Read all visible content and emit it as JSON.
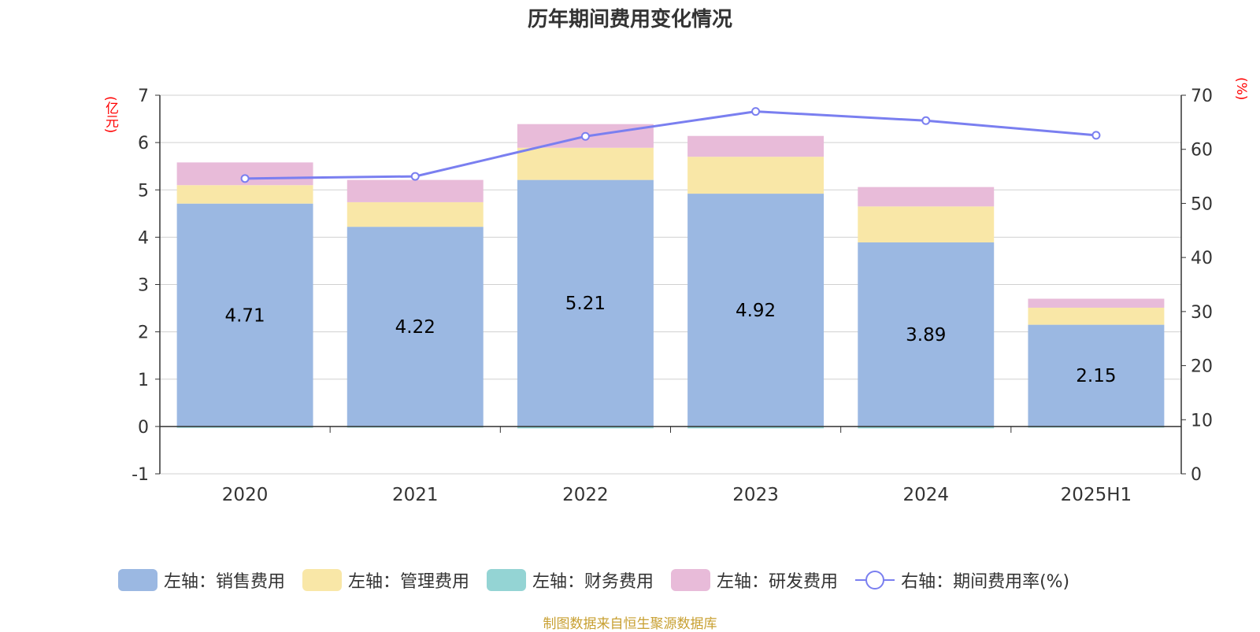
{
  "title": "历年期间费用变化情况",
  "source": "制图数据来自恒生聚源数据库",
  "chart_data": {
    "type": "bar",
    "stacked": true,
    "title": "历年期间费用变化情况",
    "categories": [
      "2020",
      "2021",
      "2022",
      "2023",
      "2024",
      "2025H1"
    ],
    "left_axis": {
      "unit": "(亿元)",
      "min": -1,
      "max": 7,
      "ticks": [
        "-1",
        "0",
        "1",
        "2",
        "3",
        "4",
        "5",
        "6",
        "7"
      ]
    },
    "right_axis": {
      "unit": "(%)",
      "min": 0,
      "max": 70,
      "ticks": [
        "0",
        "10",
        "20",
        "30",
        "40",
        "50",
        "60",
        "70"
      ]
    },
    "series": [
      {
        "name": "左轴：销售费用",
        "type": "bar",
        "axis": "left",
        "color": "#9bb8e2",
        "values": [
          4.71,
          4.22,
          5.21,
          4.92,
          3.89,
          2.15
        ],
        "labels": [
          "4.71",
          "4.22",
          "5.21",
          "4.92",
          "3.89",
          "2.15"
        ]
      },
      {
        "name": "左轴：管理费用",
        "type": "bar",
        "axis": "left",
        "color": "#f9e7a7",
        "values": [
          0.39,
          0.52,
          0.68,
          0.78,
          0.76,
          0.36
        ]
      },
      {
        "name": "左轴：财务费用",
        "type": "bar",
        "axis": "left",
        "color": "#94d4d4",
        "values": [
          -0.03,
          -0.01,
          -0.04,
          -0.04,
          -0.04,
          -0.01
        ]
      },
      {
        "name": "左轴：研发费用",
        "type": "bar",
        "axis": "left",
        "color": "#e8bbd9",
        "values": [
          0.48,
          0.47,
          0.5,
          0.44,
          0.41,
          0.19
        ]
      },
      {
        "name": "右轴：期间费用率(%)",
        "type": "line",
        "axis": "right",
        "color": "#7a7ff0",
        "values": [
          54.6,
          55.0,
          62.4,
          67.0,
          65.3,
          62.6
        ]
      }
    ],
    "grid": true,
    "legend_position": "bottom"
  }
}
